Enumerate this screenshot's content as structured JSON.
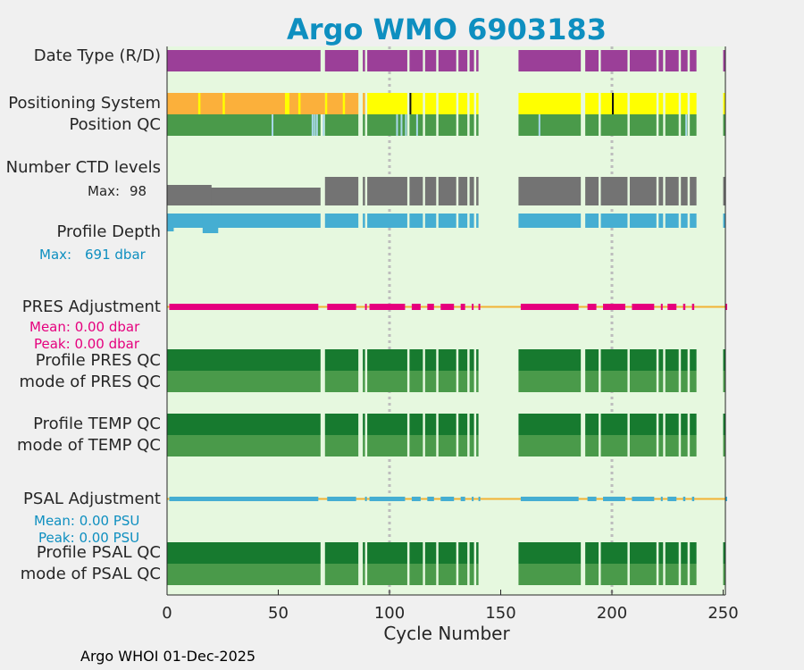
{
  "colors": {
    "title": "#0e8fc0",
    "plot_bg": "#e6f8df",
    "purple": "#9b3f98",
    "yellow": "#ffff00",
    "orange": "#fbb03b",
    "qc_green": "#4a9a4a",
    "qc_dark_green": "#177a2f",
    "gray": "#737373",
    "blue": "#45aed2",
    "magenta": "#e5007e",
    "adj_line": "#f2b233",
    "light_blue": "#a8d8ea"
  },
  "chart_data": {
    "type": "status-timeline",
    "title": "Argo WMO 6903183",
    "xlabel": "Cycle Number",
    "xlim": [
      0,
      251
    ],
    "xticks": [
      "0",
      "50",
      "100",
      "150",
      "200",
      "250"
    ],
    "grid_x": [
      100,
      200
    ],
    "footer": "Argo WHOI 01-Dec-2025",
    "cycle_segments": [
      [
        0,
        69
      ],
      [
        71,
        86
      ],
      [
        88,
        89
      ],
      [
        90,
        108
      ],
      [
        109,
        115
      ],
      [
        116,
        121
      ],
      [
        122,
        130
      ],
      [
        131,
        135
      ],
      [
        136,
        138
      ],
      [
        139,
        140
      ],
      [
        158,
        186
      ],
      [
        188,
        194
      ],
      [
        195,
        207
      ],
      [
        208,
        220
      ],
      [
        221,
        223
      ],
      [
        224,
        230
      ],
      [
        231,
        234
      ],
      [
        235,
        238
      ],
      [
        250,
        251
      ]
    ],
    "rows": {
      "date_type": {
        "label": "Date Type (R/D)"
      },
      "positioning_system": {
        "label": "Positioning System"
      },
      "position_qc": {
        "label": "Position QC"
      },
      "ctd_levels": {
        "label": "Number CTD levels",
        "max_label": "Max:",
        "max_value": "98"
      },
      "profile_depth": {
        "label": "Profile Depth",
        "max_label": "Max:",
        "max_value": "691 dbar"
      },
      "pres_adjustment": {
        "label": "PRES Adjustment",
        "mean": "Mean: 0.00 dbar",
        "peak": "Peak: 0.00 dbar"
      },
      "profile_pres_qc": {
        "label": "Profile PRES QC"
      },
      "mode_pres_qc": {
        "label": "mode of PRES QC"
      },
      "profile_temp_qc": {
        "label": "Profile TEMP QC"
      },
      "mode_temp_qc": {
        "label": "mode of TEMP QC"
      },
      "psal_adjustment": {
        "label": "PSAL Adjustment",
        "mean": "Mean: 0.00 PSU",
        "peak": "Peak: 0.00 PSU"
      },
      "profile_psal_qc": {
        "label": "Profile PSAL QC"
      },
      "mode_psal_qc": {
        "label": "mode of PSAL QC"
      }
    },
    "positioning_orange_ranges": [
      [
        0,
        14
      ],
      [
        15,
        25
      ],
      [
        26,
        53
      ],
      [
        55,
        59
      ],
      [
        60,
        71
      ],
      [
        72,
        79
      ],
      [
        80,
        86
      ],
      [
        88,
        89
      ]
    ],
    "positioning_black_cycles": [
      109,
      200
    ],
    "position_qc_light_cycles": [
      47,
      65,
      66,
      67,
      70,
      103,
      105,
      107,
      112,
      167,
      233
    ]
  }
}
